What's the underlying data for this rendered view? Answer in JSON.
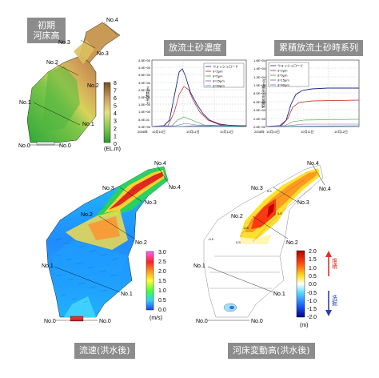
{
  "panels": {
    "initial_bed": {
      "title": "初期\n河床高",
      "sections": [
        "No.4",
        "No.3",
        "No.3",
        "No.2",
        "No.2",
        "No.1",
        "No.1",
        "No.0",
        "No.0"
      ],
      "colorbar": {
        "ticks": [
          "8",
          "7",
          "6",
          "5",
          "4",
          "3",
          "2",
          "1",
          "0"
        ],
        "unit": "(EL.m)"
      }
    },
    "sediment_conc": {
      "title": "放流土砂濃度",
      "y_label": "土砂濃度(%)",
      "y_ticks": [
        "4.5E+00",
        "4.0E+00",
        "3.5E+00",
        "3.0E+00",
        "2.5E+00",
        "2.0E+00",
        "1.5E+00",
        "1.0E+00",
        "5.0E-01",
        "0.0E+00"
      ],
      "x_ticks": [
        "2008年",
        "10月10日",
        "10月11日",
        "10月12日"
      ],
      "legend": [
        "ウォッシュロード",
        "d=2μm",
        "d=5μm",
        "d=15μm",
        "d=40μm"
      ]
    },
    "cumulative": {
      "title": "累積放流土砂時系列",
      "y_label": "累積放流土砂量(m3)",
      "y_ticks": [
        "1.6E+04",
        "1.4E+04",
        "1.2E+04",
        "1.0E+04",
        "8.0E+03",
        "6.0E+03",
        "4.0E+03",
        "2.0E+03",
        "0.0E+00"
      ],
      "x_ticks": [
        "2008年",
        "10月10日",
        "10月11日",
        "10月12日"
      ],
      "legend": [
        "ウォッシュロード",
        "d=2μm",
        "d=5μm",
        "d=15μm",
        "d=40μm"
      ]
    },
    "velocity": {
      "caption": "流速(洪水後)",
      "sections": [
        "No.4",
        "No.4",
        "No.3",
        "No.3",
        "No.2",
        "No.2",
        "No.1",
        "No.1",
        "No.0",
        "No.0"
      ],
      "colorbar": {
        "ticks": [
          "3.0",
          "2.5",
          "2.0",
          "1.5",
          "1.0",
          "0.5",
          "0.0"
        ],
        "unit": "(m/s)"
      }
    },
    "bed_change": {
      "caption": "河床変動高(洪水後)",
      "sections": [
        "No.4",
        "No.4",
        "No.3",
        "No.3",
        "No.2",
        "No.2",
        "No.1",
        "No.1",
        "No.0",
        "No.0"
      ],
      "colorbar": {
        "ticks": [
          "2.0",
          "1.5",
          "1.0",
          "0.5",
          "0.0",
          "-0.5",
          "-1.0",
          "-1.5",
          "-2.0"
        ],
        "unit": "(m)"
      },
      "deposit_label": "堆積",
      "erosion_label": "洗掘",
      "contour_labels": [
        "0.5",
        "0.5",
        "-0.5",
        "0.5",
        "-0.5"
      ]
    }
  },
  "colors": {
    "tag_bg": "#8c8c8c",
    "deposit": "#e0302a",
    "erosion": "#2c3fb0"
  }
}
